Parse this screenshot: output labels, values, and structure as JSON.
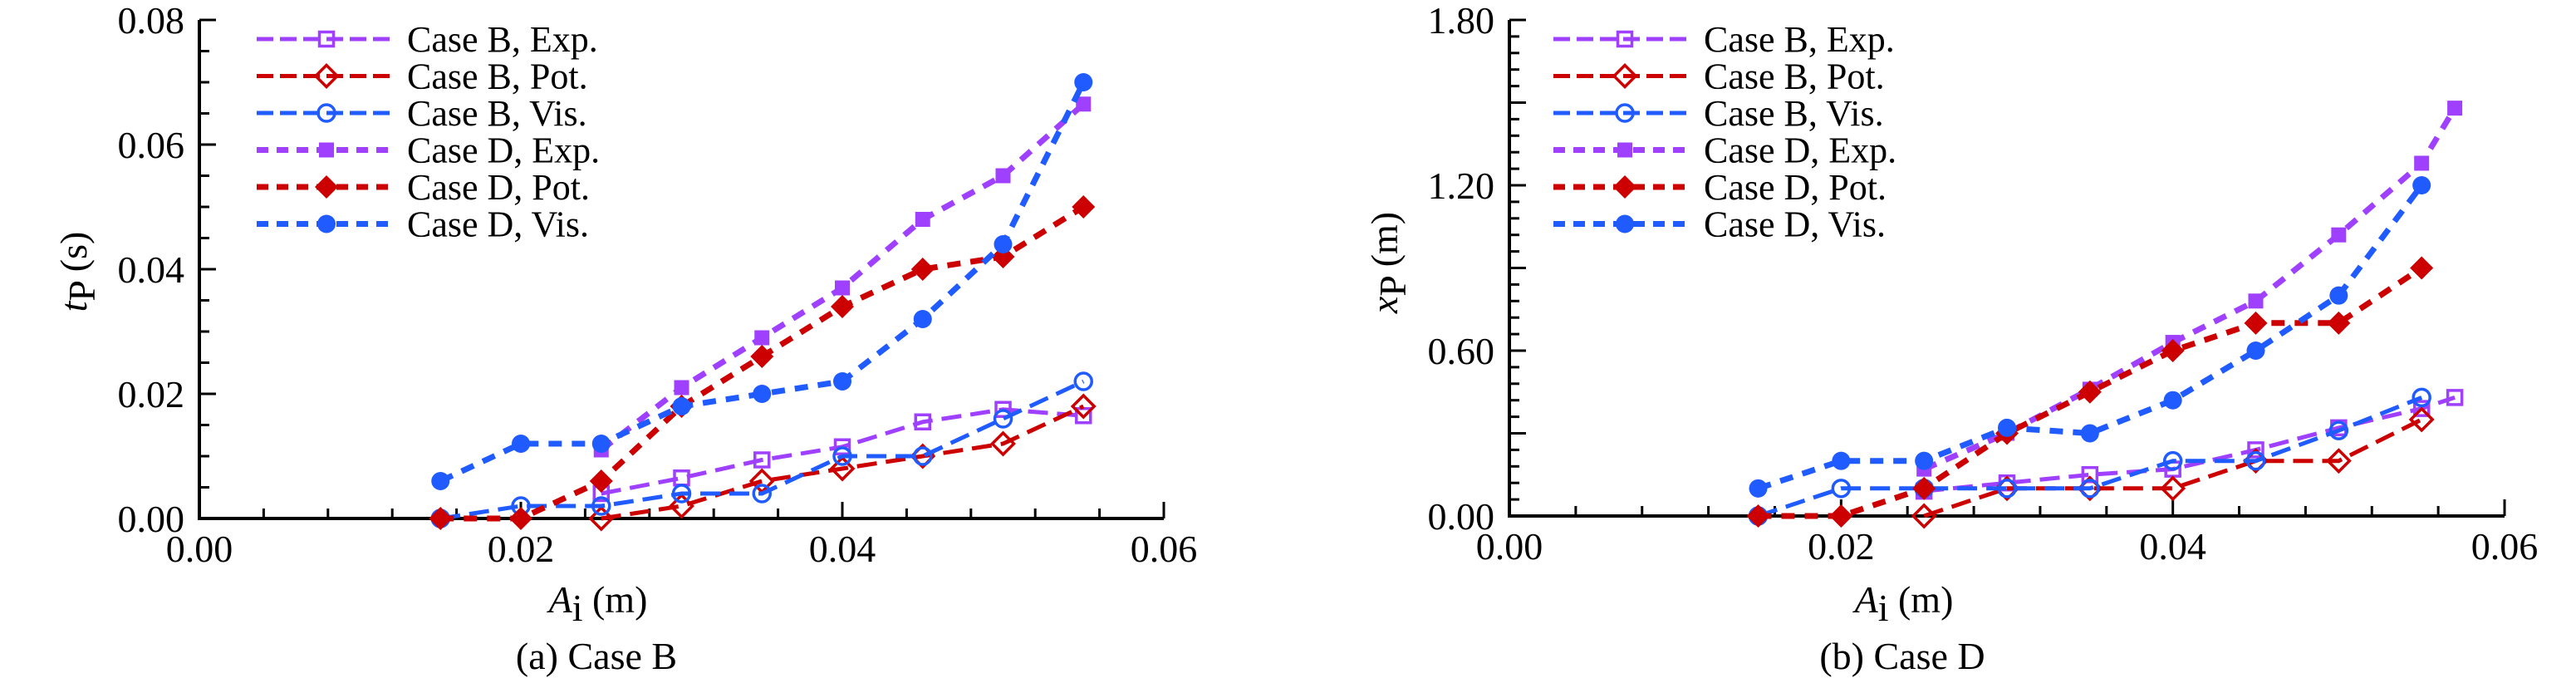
{
  "colors": {
    "exp": "#a040ff",
    "pot": "#cc0000",
    "vis": "#1f5bff",
    "axis": "#000000"
  },
  "legend": [
    {
      "label": "Case B, Exp.",
      "series": "B_exp"
    },
    {
      "label": "Case B, Pot.",
      "series": "B_pot"
    },
    {
      "label": "Case B, Vis.",
      "series": "B_vis"
    },
    {
      "label": "Case D, Exp.",
      "series": "D_exp"
    },
    {
      "label": "Case D, Pot.",
      "series": "D_pot"
    },
    {
      "label": "Case D, Vis.",
      "series": "D_vis"
    }
  ],
  "chart_data": [
    {
      "type": "line",
      "caption": "(a) Case B",
      "xlabel": {
        "symbol": "A",
        "sub": "i",
        "unit": " (m)"
      },
      "ylabel": {
        "symbol": "t",
        "sub": "P",
        "unit": " (s)"
      },
      "xlim": [
        0,
        0.06
      ],
      "ylim": [
        0,
        0.08
      ],
      "x_ticks": [
        "0.00",
        "0.02",
        "0.04",
        "0.06"
      ],
      "y_ticks": [
        "0.00",
        "0.02",
        "0.04",
        "0.06",
        "0.08"
      ],
      "legend_position": "top-left",
      "grid": false,
      "series": [
        {
          "id": "B_exp",
          "name": "Case B, Exp.",
          "marker": "square-open",
          "color": "exp",
          "dash": "long",
          "x": [
            0.025,
            0.03,
            0.035,
            0.04,
            0.045,
            0.05,
            0.055
          ],
          "y": [
            0.004,
            0.0065,
            0.0094,
            0.0115,
            0.0155,
            0.0175,
            0.0165
          ]
        },
        {
          "id": "B_pot",
          "name": "Case B, Pot.",
          "marker": "diamond-open",
          "color": "pot",
          "dash": "long",
          "x": [
            0.025,
            0.03,
            0.035,
            0.04,
            0.045,
            0.05,
            0.055
          ],
          "y": [
            0.0,
            0.002,
            0.006,
            0.008,
            0.01,
            0.012,
            0.018
          ]
        },
        {
          "id": "B_vis",
          "name": "Case B, Vis.",
          "marker": "circle-open",
          "color": "vis",
          "dash": "long",
          "x": [
            0.015,
            0.02,
            0.025,
            0.03,
            0.035,
            0.04,
            0.045,
            0.05,
            0.055
          ],
          "y": [
            0.0,
            0.002,
            0.002,
            0.004,
            0.004,
            0.01,
            0.01,
            0.016,
            0.022
          ]
        },
        {
          "id": "D_exp",
          "name": "Case D, Exp.",
          "marker": "square-filled",
          "color": "exp",
          "dash": "short",
          "x": [
            0.025,
            0.03,
            0.035,
            0.04,
            0.045,
            0.05,
            0.055
          ],
          "y": [
            0.011,
            0.021,
            0.029,
            0.037,
            0.048,
            0.055,
            0.0665
          ]
        },
        {
          "id": "D_pot",
          "name": "Case D, Pot.",
          "marker": "diamond-filled",
          "color": "pot",
          "dash": "short",
          "x": [
            0.015,
            0.02,
            0.025,
            0.03,
            0.035,
            0.04,
            0.045,
            0.05,
            0.055
          ],
          "y": [
            0.0,
            0.0,
            0.006,
            0.018,
            0.026,
            0.034,
            0.04,
            0.042,
            0.05
          ]
        },
        {
          "id": "D_vis",
          "name": "Case D, Vis.",
          "marker": "circle-filled",
          "color": "vis",
          "dash": "short",
          "x": [
            0.015,
            0.02,
            0.025,
            0.03,
            0.035,
            0.04,
            0.045,
            0.05,
            0.055
          ],
          "y": [
            0.006,
            0.012,
            0.012,
            0.018,
            0.02,
            0.022,
            0.032,
            0.044,
            0.07
          ]
        }
      ]
    },
    {
      "type": "line",
      "caption": "(b) Case D",
      "xlabel": {
        "symbol": "A",
        "sub": "i",
        "unit": " (m)"
      },
      "ylabel": {
        "symbol": "x",
        "sub": "P",
        "unit": " (m)"
      },
      "xlim": [
        0,
        0.06
      ],
      "ylim": [
        0,
        1.8
      ],
      "x_ticks": [
        "0.00",
        "0.02",
        "0.04",
        "0.06"
      ],
      "y_ticks": [
        "0.00",
        "0.60",
        "1.20",
        "1.80"
      ],
      "legend_position": "top-left",
      "grid": false,
      "series": [
        {
          "id": "B_exp",
          "name": "Case B, Exp.",
          "marker": "square-open",
          "color": "exp",
          "dash": "long",
          "x": [
            0.025,
            0.03,
            0.035,
            0.04,
            0.045,
            0.05,
            0.055,
            0.057
          ],
          "y": [
            0.09,
            0.12,
            0.15,
            0.17,
            0.24,
            0.32,
            0.39,
            0.43
          ]
        },
        {
          "id": "B_pot",
          "name": "Case B, Pot.",
          "marker": "diamond-open",
          "color": "pot",
          "dash": "long",
          "x": [
            0.025,
            0.03,
            0.035,
            0.04,
            0.045,
            0.05,
            0.055
          ],
          "y": [
            0.0,
            0.1,
            0.1,
            0.1,
            0.2,
            0.2,
            0.35
          ]
        },
        {
          "id": "B_vis",
          "name": "Case B, Vis.",
          "marker": "circle-open",
          "color": "vis",
          "dash": "long",
          "x": [
            0.015,
            0.02,
            0.025,
            0.03,
            0.035,
            0.04,
            0.045,
            0.05,
            0.055
          ],
          "y": [
            0.0,
            0.1,
            0.1,
            0.1,
            0.1,
            0.2,
            0.2,
            0.31,
            0.43
          ]
        },
        {
          "id": "D_exp",
          "name": "Case D, Exp.",
          "marker": "square-filled",
          "color": "exp",
          "dash": "short",
          "x": [
            0.025,
            0.03,
            0.035,
            0.04,
            0.045,
            0.05,
            0.055,
            0.057
          ],
          "y": [
            0.17,
            0.3,
            0.46,
            0.63,
            0.78,
            1.02,
            1.28,
            1.48
          ]
        },
        {
          "id": "D_pot",
          "name": "Case D, Pot.",
          "marker": "diamond-filled",
          "color": "pot",
          "dash": "short",
          "x": [
            0.015,
            0.02,
            0.025,
            0.03,
            0.035,
            0.04,
            0.045,
            0.05,
            0.055
          ],
          "y": [
            0.0,
            0.0,
            0.1,
            0.3,
            0.45,
            0.6,
            0.7,
            0.7,
            0.9
          ]
        },
        {
          "id": "D_vis",
          "name": "Case D, Vis.",
          "marker": "circle-filled",
          "color": "vis",
          "dash": "short",
          "x": [
            0.015,
            0.02,
            0.025,
            0.03,
            0.035,
            0.04,
            0.045,
            0.05,
            0.055
          ],
          "y": [
            0.1,
            0.2,
            0.2,
            0.32,
            0.3,
            0.42,
            0.6,
            0.8,
            1.2
          ]
        }
      ]
    }
  ]
}
